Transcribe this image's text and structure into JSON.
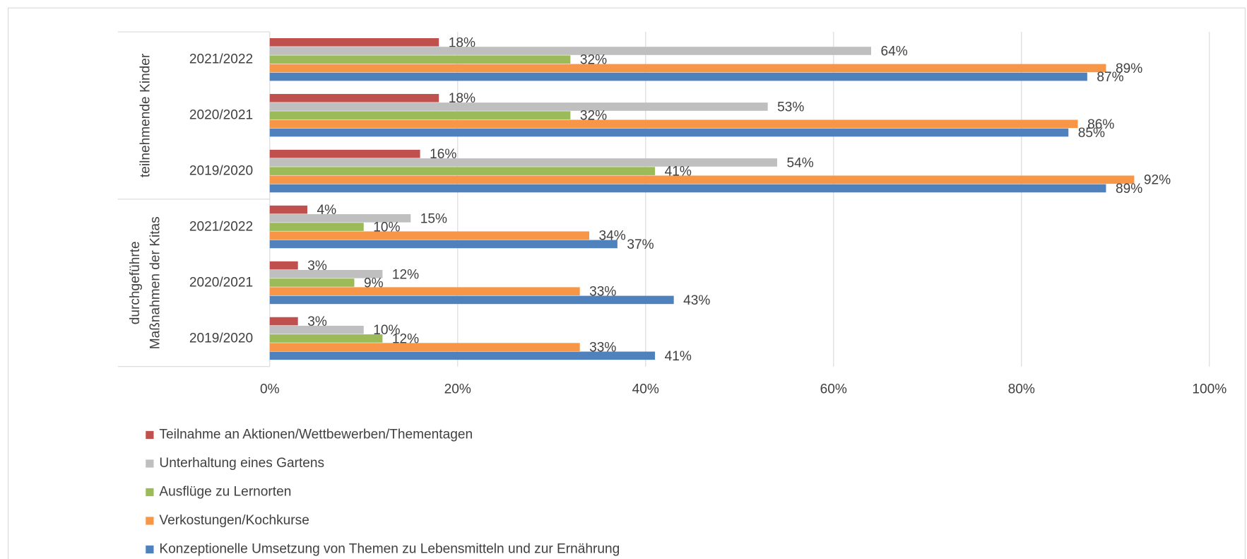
{
  "chart_data": {
    "type": "bar",
    "orientation": "horizontal",
    "groups": [
      {
        "lines": [
          "teilnehmende Kinder"
        ],
        "categories": [
          "2021/2022",
          "2020/2021",
          "2019/2020"
        ]
      },
      {
        "lines": [
          "durchgeführte",
          "Maßnahmen der Kitas"
        ],
        "categories": [
          "2021/2022",
          "2020/2021",
          "2019/2020"
        ]
      }
    ],
    "series": [
      {
        "name": "Teilnahme an Aktionen/Wettbewerben/Thementagen",
        "color": "#c0504d",
        "values": [
          18,
          18,
          16,
          4,
          3,
          3
        ],
        "value_labels": [
          "18%",
          "18%",
          "16%",
          "4%",
          "3%",
          "3%"
        ]
      },
      {
        "name": "Unterhaltung eines Gartens",
        "color": "#bfbfbf",
        "values": [
          64,
          53,
          54,
          15,
          12,
          10
        ],
        "value_labels": [
          "64%",
          "53%",
          "54%",
          "15%",
          "12%",
          "10%"
        ]
      },
      {
        "name": "Ausflüge zu Lernorten",
        "color": "#9bbb59",
        "values": [
          32,
          32,
          41,
          10,
          9,
          12
        ],
        "value_labels": [
          "32%",
          "32%",
          "41%",
          "10%",
          "9%",
          "12%"
        ]
      },
      {
        "name": "Verkostungen/Kochkurse",
        "color": "#f79646",
        "values": [
          89,
          86,
          92,
          34,
          33,
          33
        ],
        "value_labels": [
          "89%",
          "86%",
          "92%",
          "34%",
          "33%",
          "33%"
        ]
      },
      {
        "name": "Konzeptionelle Umsetzung von Themen zu Lebensmitteln und zur Ernährung",
        "color": "#4f81bd",
        "values": [
          87,
          85,
          89,
          37,
          43,
          41
        ],
        "value_labels": [
          "87%",
          "85%",
          "89%",
          "37%",
          "43%",
          "41%"
        ]
      }
    ],
    "xlim": [
      0,
      100
    ],
    "xticks": [
      {
        "value": 0,
        "label": "0%"
      },
      {
        "value": 20,
        "label": "20%"
      },
      {
        "value": 40,
        "label": "40%"
      },
      {
        "value": 60,
        "label": "60%"
      },
      {
        "value": 80,
        "label": "80%"
      },
      {
        "value": 100,
        "label": "100%"
      }
    ],
    "grid": true,
    "legend": "bottom"
  }
}
